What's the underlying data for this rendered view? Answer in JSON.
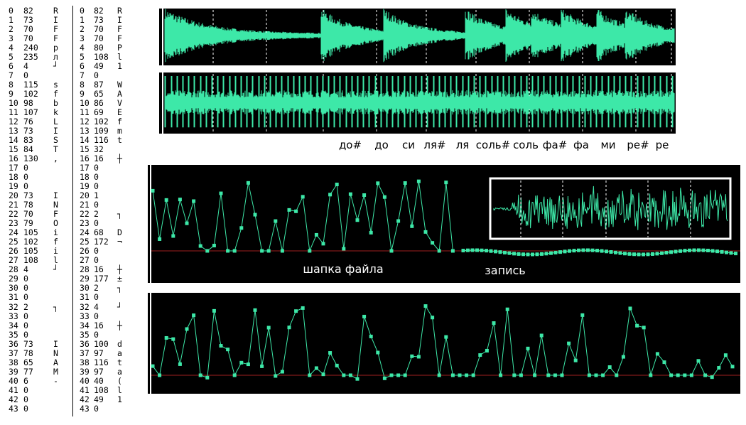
{
  "left_dump": [
    [
      0,
      82,
      "R"
    ],
    [
      1,
      73,
      "I"
    ],
    [
      2,
      70,
      "F"
    ],
    [
      3,
      70,
      "F"
    ],
    [
      4,
      240,
      "р"
    ],
    [
      5,
      235,
      "л"
    ],
    [
      6,
      4,
      "┘"
    ],
    [
      7,
      0
    ],
    [
      8,
      115,
      "s"
    ],
    [
      9,
      102,
      "f"
    ],
    [
      10,
      98,
      "b"
    ],
    [
      11,
      107,
      "k"
    ],
    [
      12,
      76,
      "L"
    ],
    [
      13,
      73,
      "I"
    ],
    [
      14,
      83,
      "S"
    ],
    [
      15,
      84,
      "T"
    ],
    [
      16,
      130,
      ","
    ],
    [
      17,
      0
    ],
    [
      18,
      0
    ],
    [
      19,
      0
    ],
    [
      20,
      73,
      "I"
    ],
    [
      21,
      78,
      "N"
    ],
    [
      22,
      70,
      "F"
    ],
    [
      23,
      79,
      "O"
    ],
    [
      24,
      105,
      "i"
    ],
    [
      25,
      102,
      "f"
    ],
    [
      26,
      105,
      "i"
    ],
    [
      27,
      108,
      "l"
    ],
    [
      28,
      4,
      "┘"
    ],
    [
      29,
      0
    ],
    [
      30,
      0
    ],
    [
      31,
      0
    ],
    [
      32,
      2,
      "┐"
    ],
    [
      33,
      0
    ],
    [
      34,
      0
    ],
    [
      35,
      0
    ],
    [
      36,
      73,
      "I"
    ],
    [
      37,
      78,
      "N"
    ],
    [
      38,
      65,
      "A"
    ],
    [
      39,
      77,
      "M"
    ],
    [
      40,
      6,
      "-"
    ],
    [
      41,
      0
    ],
    [
      42,
      0
    ],
    [
      43,
      0
    ]
  ],
  "right_dump": [
    [
      0,
      82,
      "R"
    ],
    [
      1,
      73,
      "I"
    ],
    [
      2,
      70,
      "F"
    ],
    [
      3,
      70,
      "F"
    ],
    [
      4,
      80,
      "P"
    ],
    [
      5,
      108,
      "l"
    ],
    [
      6,
      49,
      "1"
    ],
    [
      7,
      0
    ],
    [
      8,
      87,
      "W"
    ],
    [
      9,
      65,
      "A"
    ],
    [
      10,
      86,
      "V"
    ],
    [
      11,
      69,
      "E"
    ],
    [
      12,
      102,
      "f"
    ],
    [
      13,
      109,
      "m"
    ],
    [
      14,
      116,
      "t"
    ],
    [
      15,
      32
    ],
    [
      16,
      16,
      "┼"
    ],
    [
      17,
      0
    ],
    [
      18,
      0
    ],
    [
      19,
      0
    ],
    [
      20,
      1
    ],
    [
      21,
      0
    ],
    [
      22,
      2,
      "┐"
    ],
    [
      23,
      0
    ],
    [
      24,
      68,
      "D"
    ],
    [
      25,
      172,
      "¬"
    ],
    [
      26,
      0
    ],
    [
      27,
      0
    ],
    [
      28,
      16,
      "┼"
    ],
    [
      29,
      177,
      "±"
    ],
    [
      30,
      2,
      "┐"
    ],
    [
      31,
      0
    ],
    [
      32,
      4,
      "┘"
    ],
    [
      33,
      0
    ],
    [
      34,
      16,
      "┼"
    ],
    [
      35,
      0
    ],
    [
      36,
      100,
      "d"
    ],
    [
      37,
      97,
      "a"
    ],
    [
      38,
      116,
      "t"
    ],
    [
      39,
      97,
      "a"
    ],
    [
      40,
      40,
      "("
    ],
    [
      41,
      108,
      "l"
    ],
    [
      42,
      49,
      "1"
    ],
    [
      43,
      0
    ]
  ],
  "notes": [
    "до#",
    "до",
    "си",
    "ля#",
    "ля",
    "соль#",
    "соль",
    "фа#",
    "фа",
    "ми",
    "ре#",
    "ре"
  ],
  "labels": {
    "header": "шапка файла",
    "record": "запись"
  }
}
